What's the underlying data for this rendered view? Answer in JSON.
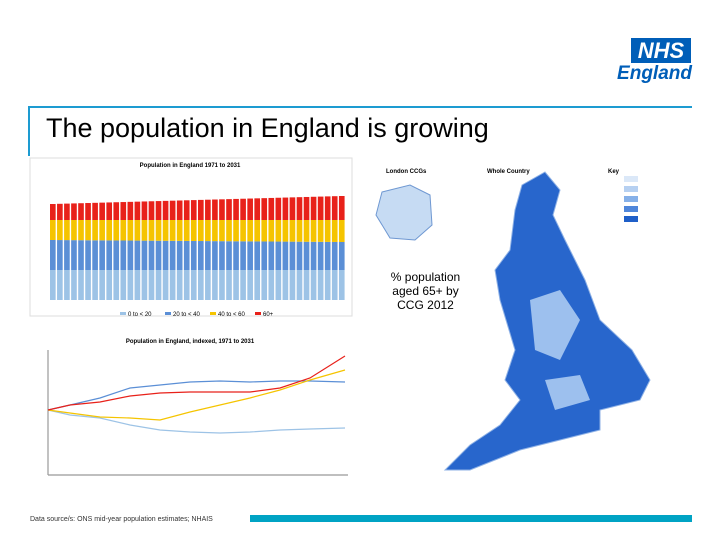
{
  "logo": {
    "mark": "NHS",
    "name": "England"
  },
  "title": "The population in England is growing",
  "charts": {
    "bar_title": "Population in England 1971 to 2031",
    "line_title": "Population in England, indexed, 1971 to 2031",
    "legend": [
      "0 to < 20",
      "20 to < 40",
      "40 to < 60",
      "60+"
    ]
  },
  "map": {
    "panel_labels": [
      "London CCGs",
      "Whole Country",
      "Key"
    ],
    "caption": "% population aged 65+ by CCG 2012"
  },
  "source": "Data source/s: ONS mid-year population estimates; NHAIS"
}
